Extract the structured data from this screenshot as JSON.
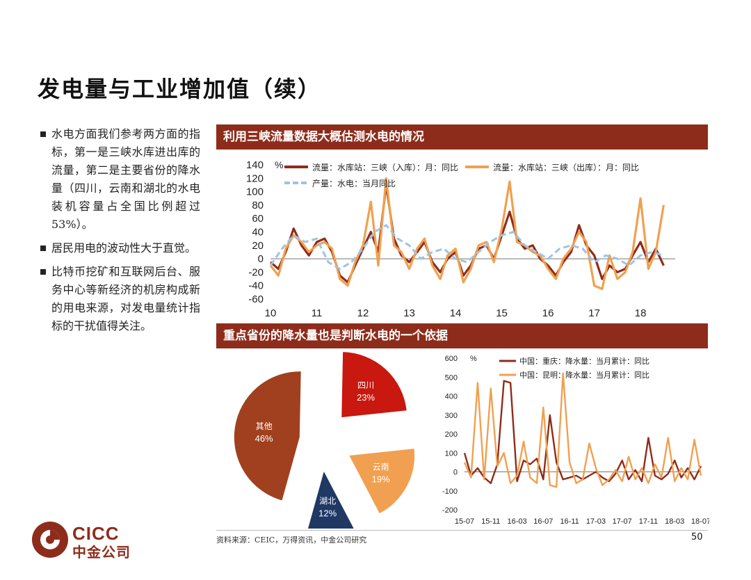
{
  "title": "发电量与工业增加值（续）",
  "bullets": [
    "水电方面我们参考两方面的指标，第一是三峡水库进出库的流量，第二是主要省份的降水量（四川，云南和湖北的水电装机容量占全国比例超过53%）。",
    "居民用电的波动性大于直觉。",
    "比特币挖矿和互联网后台、服务中心等新经济的机房构成新的用电来源，对发电量统计指标的干扰值得关注。"
  ],
  "panel1_title": "利用三峡流量数据大概估测水电的情况",
  "panel2_title": "重点省份的降水量也是判断水电的一个依据",
  "source": "资料来源：CEIC，万得资讯，中金公司研究",
  "page_number": "50",
  "logo": {
    "en": "CICC",
    "cn": "中金公司"
  },
  "colors": {
    "brand": "#8e2c1b",
    "dark_red": "#8e2c1b",
    "orange": "#f0a050",
    "light_blue": "#9dc3e6",
    "red": "#c8180f",
    "navy": "#1f3864"
  },
  "chart_data": [
    {
      "type": "line",
      "unit": "%",
      "x_ticks": [
        "10",
        "11",
        "12",
        "13",
        "14",
        "15",
        "16",
        "17",
        "18"
      ],
      "x_range": [
        2010.0,
        2018.75
      ],
      "ylim": [
        -60,
        140
      ],
      "y_ticks": [
        -60,
        -40,
        -20,
        0,
        20,
        40,
        60,
        80,
        100,
        120,
        140
      ],
      "series": [
        {
          "name": "流量：水库站：三峡（入库）：月：同比",
          "color": "#8e2c1b",
          "style": "solid",
          "x": [
            2010.0,
            2010.17,
            2010.33,
            2010.5,
            2010.67,
            2010.83,
            2011.0,
            2011.17,
            2011.33,
            2011.5,
            2011.67,
            2011.83,
            2012.0,
            2012.17,
            2012.33,
            2012.5,
            2012.67,
            2012.83,
            2013.0,
            2013.17,
            2013.33,
            2013.5,
            2013.67,
            2013.83,
            2014.0,
            2014.17,
            2014.33,
            2014.5,
            2014.67,
            2014.83,
            2015.0,
            2015.17,
            2015.33,
            2015.5,
            2015.67,
            2015.83,
            2016.0,
            2016.17,
            2016.33,
            2016.5,
            2016.67,
            2016.83,
            2017.0,
            2017.17,
            2017.33,
            2017.5,
            2017.67,
            2017.83,
            2018.0,
            2018.17,
            2018.33,
            2018.5
          ],
          "y": [
            -5,
            -15,
            10,
            45,
            20,
            5,
            25,
            30,
            10,
            -25,
            -35,
            -10,
            15,
            40,
            10,
            110,
            30,
            5,
            -5,
            10,
            25,
            -5,
            -20,
            0,
            10,
            -25,
            -10,
            15,
            20,
            0,
            35,
            70,
            30,
            15,
            20,
            0,
            -10,
            -25,
            -5,
            10,
            50,
            20,
            5,
            -30,
            -10,
            -20,
            -15,
            5,
            25,
            -5,
            15,
            -10
          ]
        },
        {
          "name": "流量：水库站：三峡（出库）：月：同比",
          "color": "#f0a050",
          "style": "solid",
          "x": [
            2010.0,
            2010.17,
            2010.33,
            2010.5,
            2010.67,
            2010.83,
            2011.0,
            2011.17,
            2011.33,
            2011.5,
            2011.67,
            2011.83,
            2012.0,
            2012.17,
            2012.33,
            2012.5,
            2012.67,
            2012.83,
            2013.0,
            2013.17,
            2013.33,
            2013.5,
            2013.67,
            2013.83,
            2014.0,
            2014.17,
            2014.33,
            2014.5,
            2014.67,
            2014.83,
            2015.0,
            2015.17,
            2015.33,
            2015.5,
            2015.67,
            2015.83,
            2016.0,
            2016.17,
            2016.33,
            2016.5,
            2016.67,
            2016.83,
            2017.0,
            2017.17,
            2017.33,
            2017.5,
            2017.67,
            2017.83,
            2018.0,
            2018.17,
            2018.33,
            2018.5
          ],
          "y": [
            -10,
            -25,
            15,
            35,
            25,
            10,
            20,
            25,
            15,
            -30,
            -40,
            -5,
            20,
            85,
            -10,
            120,
            20,
            10,
            -15,
            15,
            30,
            -10,
            -30,
            5,
            15,
            -35,
            -15,
            20,
            25,
            -5,
            45,
            115,
            25,
            20,
            10,
            5,
            -15,
            -30,
            0,
            15,
            40,
            25,
            -40,
            -45,
            5,
            -30,
            -20,
            10,
            90,
            -15,
            10,
            80
          ]
        },
        {
          "name": "产量：水电：当月同比",
          "color": "#9dc3e6",
          "style": "dashed",
          "x": [
            2010.0,
            2010.25,
            2010.5,
            2010.75,
            2011.0,
            2011.25,
            2011.5,
            2011.75,
            2012.0,
            2012.25,
            2012.5,
            2012.75,
            2013.0,
            2013.25,
            2013.5,
            2013.75,
            2014.0,
            2014.25,
            2014.5,
            2014.75,
            2015.0,
            2015.25,
            2015.5,
            2015.75,
            2016.0,
            2016.25,
            2016.5,
            2016.75,
            2017.0,
            2017.25,
            2017.5,
            2017.75,
            2018.0,
            2018.25,
            2018.5
          ],
          "y": [
            -10,
            15,
            35,
            25,
            30,
            -5,
            -15,
            -5,
            15,
            40,
            50,
            30,
            20,
            0,
            10,
            15,
            0,
            -5,
            10,
            25,
            35,
            40,
            20,
            10,
            0,
            15,
            20,
            15,
            -5,
            5,
            0,
            -10,
            5,
            10,
            5
          ]
        }
      ]
    },
    {
      "type": "pie",
      "slices": [
        {
          "label": "四川",
          "value": 23,
          "display": "23%",
          "color": "#c8180f"
        },
        {
          "label": "云南",
          "value": 19,
          "display": "19%",
          "color": "#f0a050"
        },
        {
          "label": "湖北",
          "value": 12,
          "display": "12%",
          "color": "#1f3864"
        },
        {
          "label": "其他",
          "value": 46,
          "display": "46%",
          "color": "#a0401f"
        }
      ]
    },
    {
      "type": "line",
      "unit": "%",
      "x_ticks": [
        "15-07",
        "15-11",
        "16-03",
        "16-07",
        "16-11",
        "17-03",
        "17-07",
        "17-11",
        "18-03",
        "18-07"
      ],
      "x_index_range": [
        0,
        36
      ],
      "ylim": [
        -200,
        600
      ],
      "y_ticks": [
        -200,
        -100,
        0,
        100,
        200,
        300,
        400,
        500,
        600
      ],
      "series": [
        {
          "name": "中国：重庆：降水量：当月累计：同比",
          "color": "#8e2c1b",
          "x": [
            0,
            1,
            2,
            3,
            4,
            5,
            6,
            7,
            8,
            9,
            10,
            11,
            12,
            13,
            14,
            15,
            16,
            17,
            18,
            19,
            20,
            21,
            22,
            23,
            24,
            25,
            26,
            27,
            28,
            29,
            30,
            31,
            32,
            33,
            34,
            35,
            36
          ],
          "y": [
            100,
            -20,
            20,
            -30,
            -60,
            40,
            480,
            470,
            -50,
            60,
            40,
            70,
            -40,
            300,
            50,
            -40,
            -30,
            -20,
            -40,
            -20,
            0,
            -30,
            -50,
            -10,
            60,
            -40,
            10,
            -50,
            180,
            -20,
            -40,
            -10,
            60,
            -30,
            20,
            -40,
            30
          ]
        },
        {
          "name": "中国：昆明：降水量：当月累计：同比",
          "color": "#f0a050",
          "x": [
            0,
            1,
            2,
            3,
            4,
            5,
            6,
            7,
            8,
            9,
            10,
            11,
            12,
            13,
            14,
            15,
            16,
            17,
            18,
            19,
            20,
            21,
            22,
            23,
            24,
            25,
            26,
            27,
            28,
            29,
            30,
            31,
            32,
            33,
            34,
            35,
            36
          ],
          "y": [
            50,
            -30,
            470,
            -40,
            440,
            30,
            100,
            -60,
            -20,
            160,
            -30,
            -60,
            340,
            -70,
            -80,
            520,
            50,
            -60,
            -40,
            150,
            20,
            -70,
            -40,
            10,
            -50,
            80,
            -40,
            20,
            -60,
            40,
            -30,
            180,
            -50,
            20,
            -40,
            170,
            -20
          ]
        }
      ]
    }
  ]
}
